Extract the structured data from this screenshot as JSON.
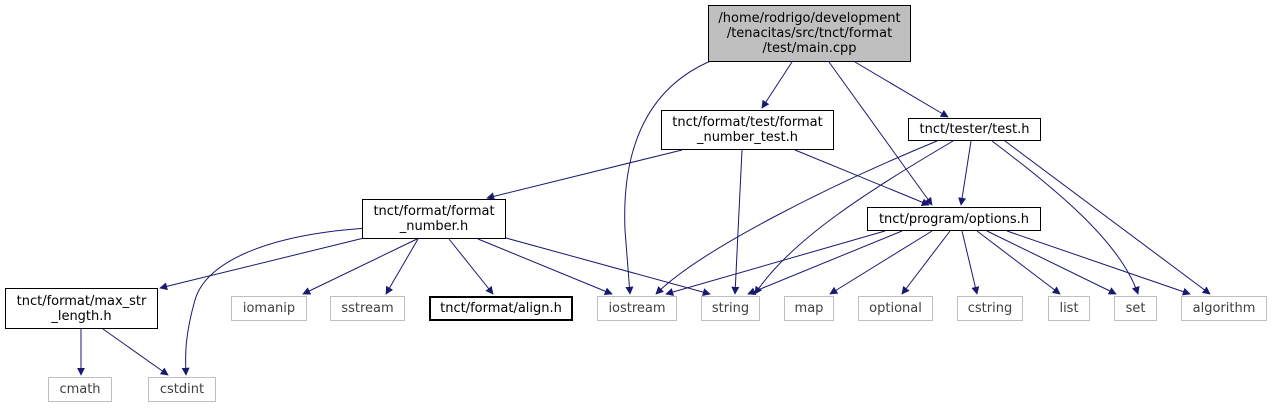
{
  "colors": {
    "edge": "#191970",
    "root_fill": "#bfbfbf",
    "ext_border": "#bfbfbf",
    "ext_text": "#404040"
  },
  "nodes": {
    "main": "/home/rodrigo/development\n/tenacitas/src/tnct/format\n/test/main.cpp",
    "format_number_test": "tnct/format/test/format\n_number_test.h",
    "test_h": "tnct/tester/test.h",
    "format_number": "tnct/format/format\n_number.h",
    "options": "tnct/program/options.h",
    "max_str_length": "tnct/format/max_str\n_length.h",
    "iomanip": "iomanip",
    "sstream": "sstream",
    "align": "tnct/format/align.h",
    "iostream": "iostream",
    "string": "string",
    "map": "map",
    "optional": "optional",
    "cstring": "cstring",
    "list": "list",
    "set": "set",
    "algorithm": "algorithm",
    "cmath": "cmath",
    "cstdint": "cstdint"
  }
}
